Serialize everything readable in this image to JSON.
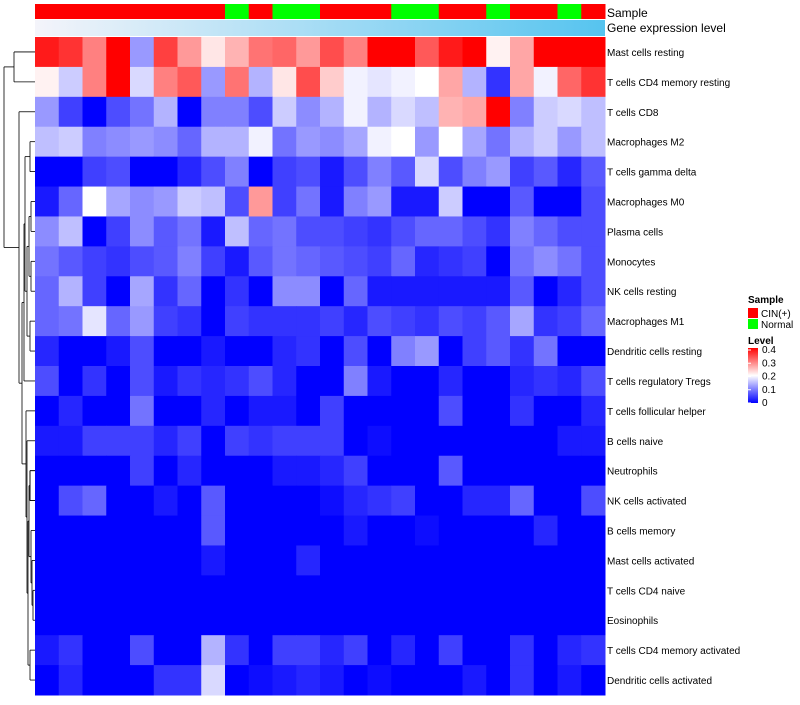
{
  "chart_data": {
    "type": "heatmap",
    "title": "",
    "annotation_labels": [
      "Sample",
      "Gene expression level"
    ],
    "sample_groups": [
      "CIN(+)",
      "CIN(+)",
      "CIN(+)",
      "CIN(+)",
      "CIN(+)",
      "CIN(+)",
      "CIN(+)",
      "CIN(+)",
      "Normal",
      "CIN(+)",
      "Normal",
      "Normal",
      "CIN(+)",
      "CIN(+)",
      "CIN(+)",
      "Normal",
      "Normal",
      "CIN(+)",
      "CIN(+)",
      "Normal",
      "CIN(+)",
      "CIN(+)",
      "Normal",
      "CIN(+)"
    ],
    "rows": [
      "Mast cells resting",
      "T cells CD4 memory resting",
      "T cells CD8",
      "Macrophages M2",
      "T cells gamma delta",
      "Macrophages M0",
      "Plasma cells",
      "Monocytes",
      "NK cells resting",
      "Macrophages M1",
      "Dendritic cells resting",
      "T cells regulatory  Tregs",
      "T cells follicular helper",
      "B cells naive",
      "Neutrophils",
      "NK cells activated",
      "B cells memory",
      "Mast cells activated",
      "T cells CD4 naive",
      "Eosinophils",
      "T cells CD4 memory activated",
      "Dendritic cells activated"
    ],
    "values": [
      [
        0.38,
        0.36,
        0.3,
        0.4,
        0.12,
        0.35,
        0.28,
        0.22,
        0.26,
        0.31,
        0.32,
        0.28,
        0.34,
        0.3,
        0.4,
        0.4,
        0.33,
        0.38,
        0.4,
        0.21,
        0.27,
        0.4,
        0.4,
        0.4
      ],
      [
        0.21,
        0.16,
        0.3,
        0.4,
        0.17,
        0.3,
        0.33,
        0.12,
        0.31,
        0.14,
        0.22,
        0.34,
        0.24,
        0.19,
        0.18,
        0.19,
        0.2,
        0.27,
        0.14,
        0.04,
        0.27,
        0.19,
        0.32,
        0.36
      ],
      [
        0.12,
        0.05,
        0.0,
        0.06,
        0.09,
        0.14,
        0.0,
        0.1,
        0.1,
        0.06,
        0.16,
        0.11,
        0.14,
        0.19,
        0.14,
        0.17,
        0.15,
        0.26,
        0.27,
        0.4,
        0.1,
        0.16,
        0.17,
        0.15
      ],
      [
        0.15,
        0.16,
        0.1,
        0.11,
        0.12,
        0.11,
        0.08,
        0.14,
        0.14,
        0.19,
        0.09,
        0.12,
        0.11,
        0.13,
        0.19,
        0.2,
        0.12,
        0.2,
        0.13,
        0.09,
        0.14,
        0.16,
        0.12,
        0.15
      ],
      [
        0.0,
        0.0,
        0.05,
        0.06,
        0.0,
        0.0,
        0.03,
        0.06,
        0.1,
        0.0,
        0.05,
        0.06,
        0.02,
        0.06,
        0.1,
        0.07,
        0.17,
        0.06,
        0.1,
        0.12,
        0.05,
        0.07,
        0.03,
        0.07
      ],
      [
        0.02,
        0.08,
        0.2,
        0.13,
        0.11,
        0.12,
        0.16,
        0.15,
        0.06,
        0.28,
        0.05,
        0.09,
        0.02,
        0.1,
        0.12,
        0.02,
        0.02,
        0.16,
        0.0,
        0.0,
        0.07,
        0.0,
        0.0,
        0.06
      ],
      [
        0.11,
        0.15,
        0.0,
        0.05,
        0.11,
        0.07,
        0.09,
        0.02,
        0.15,
        0.08,
        0.09,
        0.06,
        0.06,
        0.05,
        0.04,
        0.06,
        0.08,
        0.08,
        0.06,
        0.04,
        0.1,
        0.08,
        0.06,
        0.06
      ],
      [
        0.09,
        0.07,
        0.05,
        0.04,
        0.06,
        0.07,
        0.1,
        0.05,
        0.02,
        0.07,
        0.09,
        0.08,
        0.07,
        0.06,
        0.05,
        0.08,
        0.03,
        0.04,
        0.05,
        0.0,
        0.09,
        0.11,
        0.09,
        0.06
      ],
      [
        0.08,
        0.14,
        0.05,
        0.0,
        0.13,
        0.04,
        0.08,
        0.0,
        0.04,
        0.0,
        0.11,
        0.11,
        0.0,
        0.08,
        0.02,
        0.02,
        0.02,
        0.02,
        0.02,
        0.02,
        0.07,
        0.0,
        0.03,
        0.06
      ],
      [
        0.08,
        0.09,
        0.18,
        0.08,
        0.12,
        0.05,
        0.04,
        0.0,
        0.05,
        0.04,
        0.04,
        0.04,
        0.05,
        0.03,
        0.06,
        0.05,
        0.04,
        0.06,
        0.05,
        0.07,
        0.13,
        0.04,
        0.05,
        0.08
      ],
      [
        0.03,
        0.0,
        0.0,
        0.02,
        0.06,
        0.0,
        0.0,
        0.02,
        0.0,
        0.0,
        0.03,
        0.04,
        0.0,
        0.06,
        0.0,
        0.1,
        0.12,
        0.0,
        0.05,
        0.07,
        0.04,
        0.09,
        0.0,
        0.0
      ],
      [
        0.06,
        0.0,
        0.04,
        0.0,
        0.06,
        0.02,
        0.04,
        0.03,
        0.04,
        0.06,
        0.03,
        0.0,
        0.0,
        0.1,
        0.02,
        0.0,
        0.0,
        0.03,
        0.0,
        0.0,
        0.03,
        0.04,
        0.03,
        0.06
      ],
      [
        0.0,
        0.03,
        0.0,
        0.0,
        0.09,
        0.0,
        0.0,
        0.03,
        0.0,
        0.02,
        0.02,
        0.0,
        0.05,
        0.0,
        0.0,
        0.0,
        0.0,
        0.06,
        0.0,
        0.0,
        0.04,
        0.0,
        0.0,
        0.03
      ],
      [
        0.02,
        0.02,
        0.05,
        0.05,
        0.05,
        0.03,
        0.05,
        0.0,
        0.05,
        0.04,
        0.05,
        0.05,
        0.05,
        0.0,
        0.01,
        0.0,
        0.0,
        0.0,
        0.0,
        0.0,
        0.0,
        0.0,
        0.02,
        0.02
      ],
      [
        0.0,
        0.0,
        0.0,
        0.0,
        0.05,
        0.0,
        0.03,
        0.0,
        0.0,
        0.0,
        0.02,
        0.02,
        0.03,
        0.05,
        0.0,
        0.0,
        0.0,
        0.07,
        0.0,
        0.0,
        0.0,
        0.0,
        0.0,
        0.0
      ],
      [
        0.0,
        0.06,
        0.08,
        0.0,
        0.0,
        0.02,
        0.0,
        0.07,
        0.0,
        0.0,
        0.0,
        0.0,
        0.01,
        0.03,
        0.04,
        0.05,
        0.0,
        0.0,
        0.03,
        0.03,
        0.08,
        0.0,
        0.0,
        0.06
      ],
      [
        0.0,
        0.0,
        0.0,
        0.0,
        0.0,
        0.0,
        0.0,
        0.07,
        0.0,
        0.0,
        0.0,
        0.0,
        0.0,
        0.02,
        0.0,
        0.0,
        0.01,
        0.0,
        0.0,
        0.0,
        0.0,
        0.03,
        0.0,
        0.0
      ],
      [
        0.0,
        0.0,
        0.0,
        0.0,
        0.0,
        0.0,
        0.0,
        0.02,
        0.0,
        0.0,
        0.0,
        0.03,
        0.0,
        0.0,
        0.0,
        0.0,
        0.0,
        0.0,
        0.0,
        0.0,
        0.0,
        0.0,
        0.0,
        0.0
      ],
      [
        0.0,
        0.0,
        0.0,
        0.0,
        0.0,
        0.0,
        0.0,
        0.0,
        0.0,
        0.0,
        0.0,
        0.0,
        0.0,
        0.0,
        0.0,
        0.0,
        0.0,
        0.0,
        0.0,
        0.0,
        0.0,
        0.0,
        0.0,
        0.0
      ],
      [
        0.0,
        0.0,
        0.0,
        0.0,
        0.0,
        0.0,
        0.0,
        0.0,
        0.0,
        0.0,
        0.0,
        0.0,
        0.0,
        0.0,
        0.0,
        0.0,
        0.0,
        0.0,
        0.0,
        0.0,
        0.0,
        0.0,
        0.0,
        0.0
      ],
      [
        0.02,
        0.04,
        0.0,
        0.0,
        0.06,
        0.0,
        0.0,
        0.14,
        0.04,
        0.0,
        0.05,
        0.05,
        0.03,
        0.05,
        0.0,
        0.03,
        0.0,
        0.05,
        0.0,
        0.0,
        0.04,
        0.0,
        0.03,
        0.04
      ],
      [
        0.0,
        0.03,
        0.0,
        0.0,
        0.0,
        0.04,
        0.04,
        0.17,
        0.0,
        0.01,
        0.02,
        0.03,
        0.02,
        0.0,
        0.01,
        0.0,
        0.0,
        0.0,
        0.02,
        0.0,
        0.04,
        0.0,
        0.02,
        0.0
      ]
    ],
    "color_scale": {
      "min": 0,
      "max": 0.4,
      "low": "#0000ff",
      "mid": "#ffffff",
      "high": "#ff0000"
    },
    "legend": {
      "sample_title": "Sample",
      "sample_entries": [
        {
          "label": "CIN(+)",
          "color": "#ff0000"
        },
        {
          "label": "Normal",
          "color": "#00ff00"
        }
      ],
      "level_title": "Level",
      "level_ticks": [
        "0.4",
        "0.3",
        "0.2",
        "0.1",
        "0"
      ],
      "placement": "right"
    },
    "gene_expression_gradient": [
      "#f4f4fa",
      "#56c4ef"
    ],
    "dendrogram": "rows"
  }
}
